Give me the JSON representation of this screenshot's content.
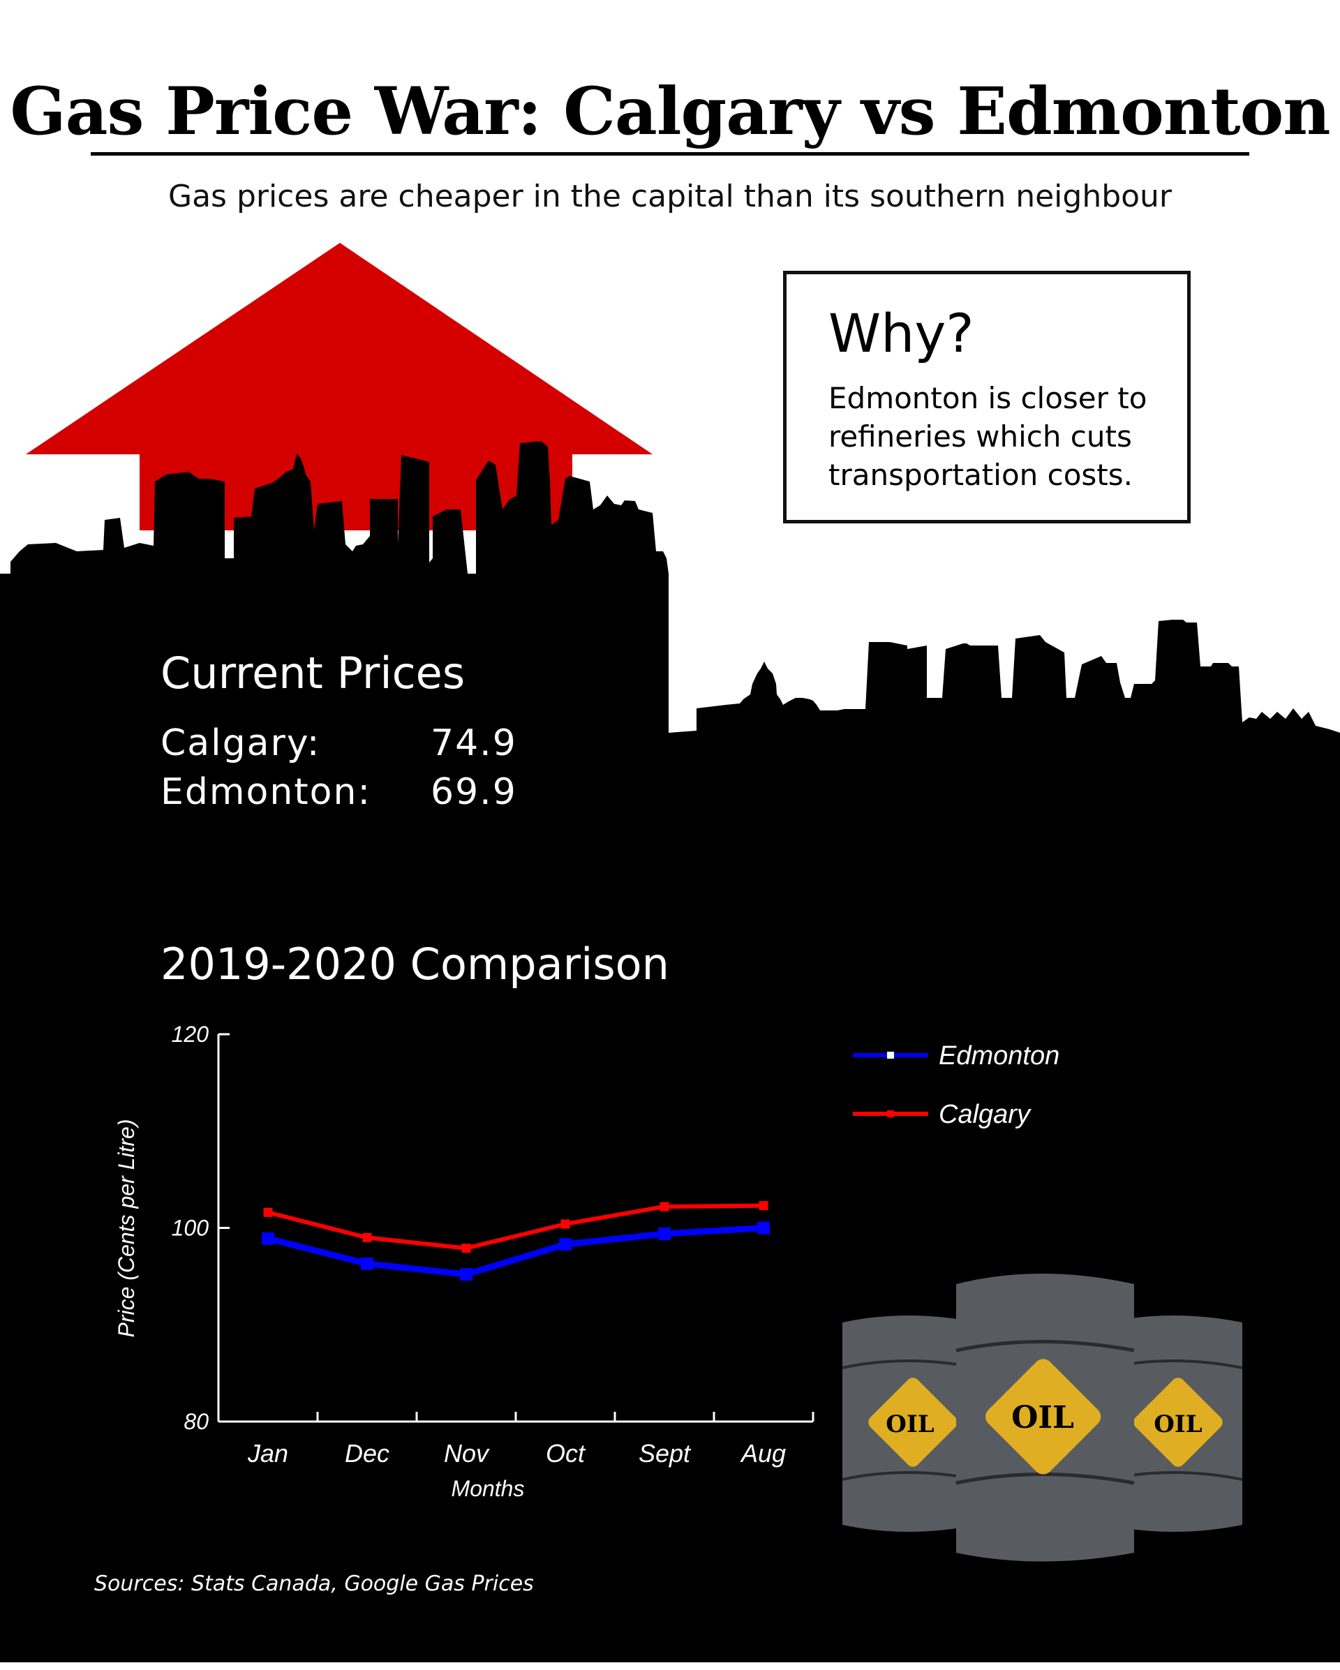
{
  "title": "Gas Price War: Calgary vs Edmonton",
  "subtitle": "Gas prices are cheaper in the capital than its southern neighbour",
  "why": {
    "heading": "Why?",
    "body": "Edmonton is closer to refineries which cuts transportation costs."
  },
  "current_prices": {
    "heading": "Current Prices",
    "rows": [
      {
        "city": "Calgary:",
        "price": "74.9"
      },
      {
        "city": "Edmonton:",
        "price": "69.9"
      }
    ]
  },
  "comparison_heading": "2019-2020 Comparison",
  "sources": "Sources: Stats Canada, Google Gas Prices",
  "barrel_label": "OIL",
  "colors": {
    "arrow": "#d40000",
    "edmonton": "#0000ff",
    "calgary": "#ff0000",
    "skyline": "#000000",
    "barrel": "#585b60",
    "oil_label": "#dfae22"
  },
  "chart_data": {
    "type": "line",
    "xlabel": "Months",
    "ylabel": "Price (Cents per Litre)",
    "categories": [
      "Jan",
      "Dec",
      "Nov",
      "Oct",
      "Sept",
      "Aug"
    ],
    "ylim": [
      80,
      120
    ],
    "yticks": [
      80,
      100,
      120
    ],
    "legend": "top-right",
    "series": [
      {
        "name": "Edmonton",
        "color": "#0000ff",
        "values": [
          98.9,
          96.3,
          95.2,
          98.3,
          99.4,
          100.0
        ]
      },
      {
        "name": "Calgary",
        "color": "#ff0000",
        "values": [
          101.6,
          99.0,
          97.9,
          100.4,
          102.2,
          102.3
        ]
      }
    ]
  }
}
